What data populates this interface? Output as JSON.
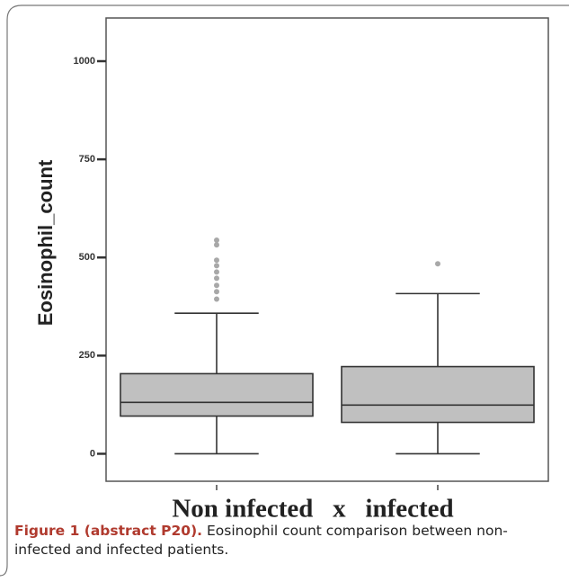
{
  "chart_data": {
    "type": "box",
    "y_label": "Eosinophil_count",
    "x_label": "Non infected   x   infected",
    "categories": [
      null,
      null
    ],
    "boxes": [
      {
        "min": 0,
        "q1": 96,
        "median": 131,
        "q3": 204,
        "max": 358,
        "outliers": [
          544,
          532,
          493,
          479,
          463,
          447,
          429,
          413,
          394
        ]
      },
      {
        "min": 0,
        "q1": 80,
        "median": 124,
        "q3": 222,
        "max": 408,
        "outliers": [
          484
        ]
      }
    ],
    "color": "#c0c0c0",
    "outlier_color": "#a8a8a8",
    "ylim": [
      -70,
      1110
    ],
    "yticks": [
      0,
      250,
      500,
      750,
      1000
    ],
    "grid": false
  },
  "caption": {
    "label": "Figure 1 (abstract P20).",
    "text": " Eosinophil count comparison between non-infected and infected patients."
  }
}
